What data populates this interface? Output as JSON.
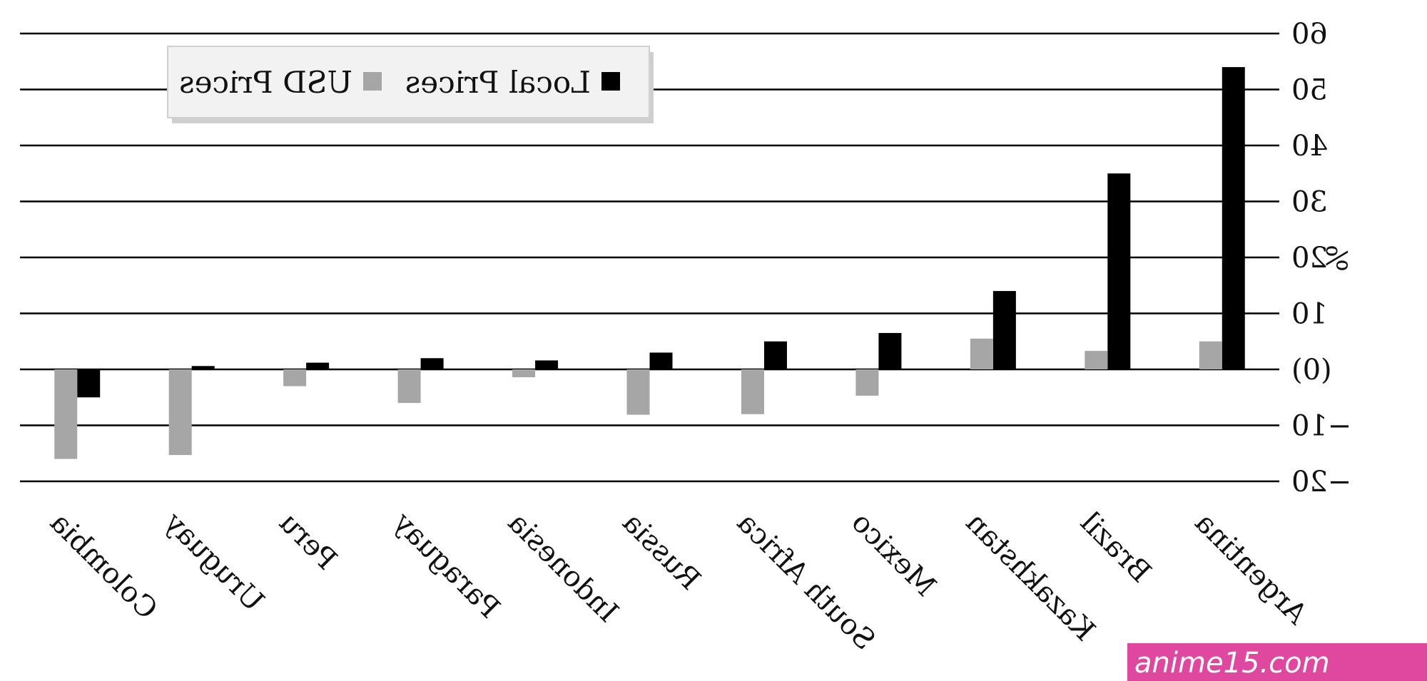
{
  "chart_data": {
    "type": "bar",
    "categories": [
      "Argentina",
      "Brazil",
      "Kazakhstan",
      "Mexico",
      "South Africa",
      "Russia",
      "Indonesia",
      "Paraguay",
      "Peru",
      "Uruguay",
      "Colombia"
    ],
    "series": [
      {
        "name": "Local Prices",
        "color": "#000000",
        "values": [
          54,
          35,
          14,
          6.5,
          5,
          3,
          1.6,
          2,
          1.2,
          0.6,
          -5
        ]
      },
      {
        "name": "USD Prices",
        "color": "#a6a6a6",
        "values": [
          5,
          3.3,
          5.5,
          -4.7,
          -8,
          -8.1,
          -1.4,
          -6,
          -3,
          -15.3,
          -16
        ]
      }
    ],
    "ylim": [
      -20,
      60
    ],
    "yticks": [
      -20,
      -10,
      0,
      10,
      20,
      30,
      40,
      50,
      60
    ],
    "ytick_labels": [
      "−20",
      "−10",
      "(0)",
      "10",
      "20",
      "30",
      "40",
      "50",
      "60"
    ],
    "ylabel": "%",
    "xlabel": "",
    "title": "",
    "grid": true,
    "legend_position": "top-left",
    "mirrored": true
  },
  "watermark": {
    "text": "anime15.com",
    "color": "#e0479e"
  }
}
